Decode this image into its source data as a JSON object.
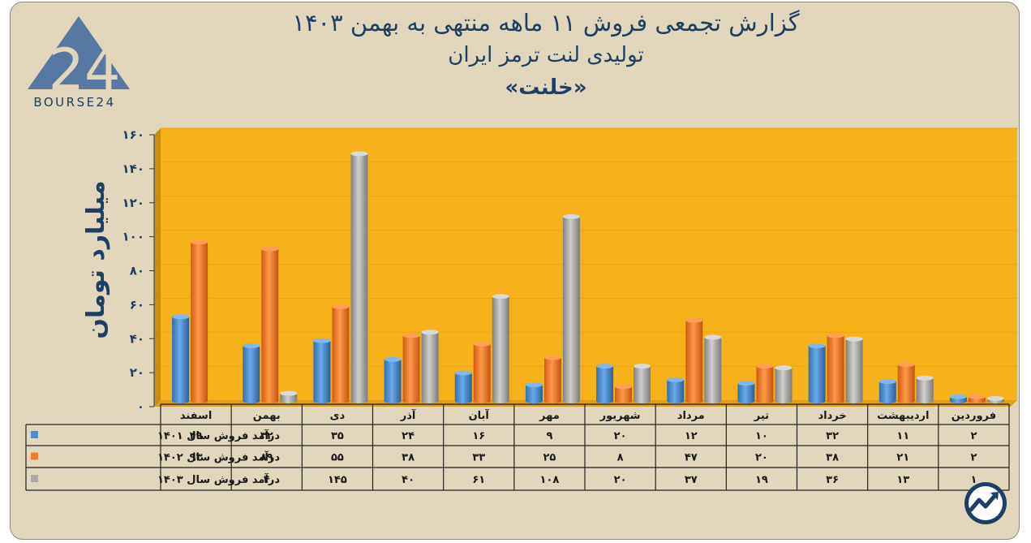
{
  "title": {
    "line1": "گزارش تجمعی فروش ۱۱ ماهه منتهی به بهمن ۱۴۰۳",
    "line2": "تولیدی لنت ترمز ایران",
    "line3": "«خلنت»"
  },
  "logo": {
    "text": "BOURSE24",
    "mark": "24",
    "icon": "bourse24-logo"
  },
  "corner_icon": "trend-arrow-icon",
  "colors": {
    "background": "#e2d6bc",
    "plot": "#f7b21b",
    "wall": "#c78c12",
    "text": "#1c3f63",
    "series": [
      "#4a90d9",
      "#f37b25",
      "#a9a9a9"
    ]
  },
  "chart_data": {
    "type": "bar",
    "title": "گزارش تجمعی فروش ۱۱ ماهه منتهی به بهمن ۱۴۰۳",
    "ylabel": "میلیارد تومان",
    "xlabel": "",
    "ylim": [
      0,
      160
    ],
    "y_ticks": [
      "۰",
      "۲۰",
      "۴۰",
      "۶۰",
      "۸۰",
      "۱۰۰",
      "۱۲۰",
      "۱۴۰",
      "۱۶۰"
    ],
    "y_tick_values": [
      0,
      20,
      40,
      60,
      80,
      100,
      120,
      140,
      160
    ],
    "categories": [
      "فروردین",
      "اردیبهشت",
      "خرداد",
      "تیر",
      "مرداد",
      "شهریور",
      "مهر",
      "آبان",
      "آذر",
      "دی",
      "بهمن",
      "اسفند"
    ],
    "series": [
      {
        "name": "درآمد فروش سال ۱۴۰۱",
        "values": [
          2,
          11,
          32,
          10,
          12,
          20,
          9,
          16,
          24,
          35,
          32,
          49
        ],
        "labels": [
          "۲",
          "۱۱",
          "۳۲",
          "۱۰",
          "۱۲",
          "۲۰",
          "۹",
          "۱۶",
          "۲۴",
          "۳۵",
          "۳۲",
          "۴۹"
        ]
      },
      {
        "name": "درآمد فروش سال ۱۴۰۲",
        "values": [
          2,
          21,
          38,
          20,
          47,
          8,
          25,
          33,
          38,
          55,
          89,
          93
        ],
        "labels": [
          "۲",
          "۲۱",
          "۳۸",
          "۲۰",
          "۴۷",
          "۸",
          "۲۵",
          "۳۳",
          "۳۸",
          "۵۵",
          "۸۹",
          "۹۳"
        ]
      },
      {
        "name": "درآمد فروش سال ۱۴۰۳",
        "values": [
          1,
          13,
          36,
          19,
          37,
          20,
          108,
          61,
          40,
          145,
          4,
          null
        ],
        "labels": [
          "۱",
          "۱۳",
          "۳۶",
          "۱۹",
          "۳۷",
          "۲۰",
          "۱۰۸",
          "۶۱",
          "۴۰",
          "۱۴۵",
          "۴",
          ""
        ]
      }
    ],
    "grid": true,
    "legend": "table-left"
  }
}
